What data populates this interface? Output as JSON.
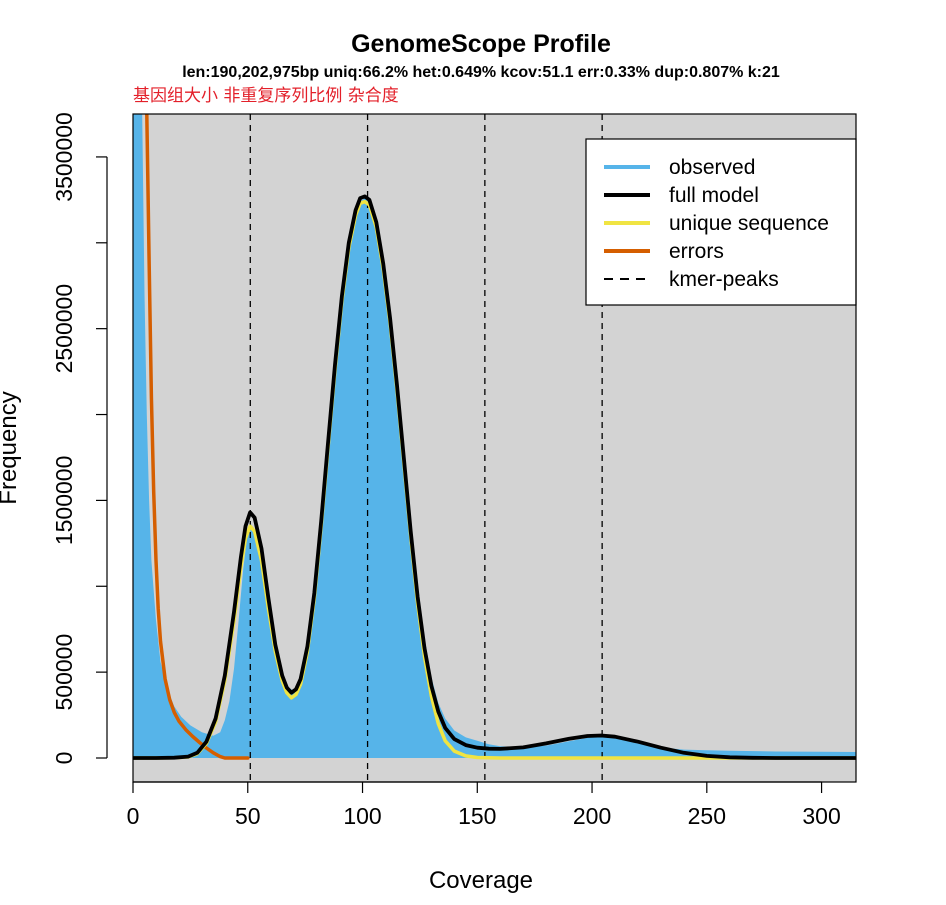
{
  "chart_data": {
    "type": "area",
    "title": "GenomeScope Profile",
    "subtitle": "len:190,202,975bp uniq:66.2%  het:0.649% kcov:51.1 err:0.33%  dup:0.807%  k:21",
    "annotation": "基因组大小 非重复序列比例  杂合度",
    "xlabel": "Coverage",
    "ylabel": "Frequency",
    "xlim": [
      0,
      315
    ],
    "ylim": [
      0,
      3750000
    ],
    "x_ticks": [
      0,
      50,
      100,
      150,
      200,
      250,
      300
    ],
    "y_ticks": [
      0,
      500000,
      1500000,
      2500000,
      3500000
    ],
    "grid": false,
    "background": "#d3d3d3",
    "legend_position": "top-right",
    "kmer_peaks": [
      51.1,
      102.2,
      153.3,
      204.4
    ],
    "series": [
      {
        "name": "observed",
        "style": "filled area",
        "color": "#56b4e9",
        "points": [
          [
            0,
            3750000
          ],
          [
            4,
            3750000
          ],
          [
            5,
            2700000
          ],
          [
            6,
            2000000
          ],
          [
            7,
            1500000
          ],
          [
            8,
            1150000
          ],
          [
            10,
            800000
          ],
          [
            12,
            560000
          ],
          [
            15,
            400000
          ],
          [
            18,
            300000
          ],
          [
            21,
            240000
          ],
          [
            25,
            190000
          ],
          [
            30,
            150000
          ],
          [
            35,
            130000
          ],
          [
            38,
            150000
          ],
          [
            40,
            220000
          ],
          [
            42,
            330000
          ],
          [
            44,
            520000
          ],
          [
            46,
            800000
          ],
          [
            48,
            1100000
          ],
          [
            50,
            1320000
          ],
          [
            51,
            1370000
          ],
          [
            52,
            1350000
          ],
          [
            54,
            1270000
          ],
          [
            57,
            1070000
          ],
          [
            60,
            820000
          ],
          [
            63,
            600000
          ],
          [
            66,
            460000
          ],
          [
            68,
            410000
          ],
          [
            70,
            390000
          ],
          [
            72,
            430000
          ],
          [
            75,
            600000
          ],
          [
            78,
            900000
          ],
          [
            81,
            1300000
          ],
          [
            84,
            1750000
          ],
          [
            87,
            2200000
          ],
          [
            90,
            2600000
          ],
          [
            93,
            2920000
          ],
          [
            96,
            3130000
          ],
          [
            99,
            3240000
          ],
          [
            101,
            3260000
          ],
          [
            103,
            3250000
          ],
          [
            106,
            3130000
          ],
          [
            109,
            2910000
          ],
          [
            112,
            2600000
          ],
          [
            115,
            2230000
          ],
          [
            118,
            1820000
          ],
          [
            121,
            1400000
          ],
          [
            124,
            1020000
          ],
          [
            127,
            700000
          ],
          [
            130,
            470000
          ],
          [
            133,
            320000
          ],
          [
            136,
            230000
          ],
          [
            140,
            160000
          ],
          [
            145,
            120000
          ],
          [
            150,
            100000
          ],
          [
            155,
            80000
          ],
          [
            160,
            68000
          ],
          [
            170,
            64000
          ],
          [
            180,
            72000
          ],
          [
            190,
            98000
          ],
          [
            200,
            122000
          ],
          [
            204,
            126000
          ],
          [
            210,
            116000
          ],
          [
            220,
            85000
          ],
          [
            230,
            62000
          ],
          [
            240,
            49000
          ],
          [
            250,
            45000
          ],
          [
            260,
            42000
          ],
          [
            280,
            38000
          ],
          [
            300,
            36000
          ],
          [
            315,
            35000
          ]
        ]
      },
      {
        "name": "full model",
        "style": "line",
        "color": "#000000",
        "points": [
          [
            0,
            0
          ],
          [
            10,
            0
          ],
          [
            18,
            2000
          ],
          [
            24,
            8000
          ],
          [
            28,
            30000
          ],
          [
            32,
            95000
          ],
          [
            36,
            230000
          ],
          [
            40,
            480000
          ],
          [
            44,
            850000
          ],
          [
            47,
            1170000
          ],
          [
            49,
            1350000
          ],
          [
            51,
            1430000
          ],
          [
            53,
            1400000
          ],
          [
            56,
            1220000
          ],
          [
            59,
            930000
          ],
          [
            62,
            660000
          ],
          [
            65,
            480000
          ],
          [
            67,
            410000
          ],
          [
            69,
            380000
          ],
          [
            71,
            400000
          ],
          [
            73,
            460000
          ],
          [
            76,
            650000
          ],
          [
            79,
            960000
          ],
          [
            82,
            1380000
          ],
          [
            85,
            1840000
          ],
          [
            88,
            2290000
          ],
          [
            91,
            2690000
          ],
          [
            94,
            3000000
          ],
          [
            97,
            3190000
          ],
          [
            99,
            3260000
          ],
          [
            101,
            3270000
          ],
          [
            103,
            3250000
          ],
          [
            106,
            3120000
          ],
          [
            109,
            2880000
          ],
          [
            112,
            2560000
          ],
          [
            115,
            2170000
          ],
          [
            118,
            1750000
          ],
          [
            121,
            1320000
          ],
          [
            124,
            940000
          ],
          [
            127,
            640000
          ],
          [
            130,
            420000
          ],
          [
            133,
            270000
          ],
          [
            136,
            175000
          ],
          [
            140,
            110000
          ],
          [
            145,
            75000
          ],
          [
            150,
            60000
          ],
          [
            155,
            54000
          ],
          [
            160,
            53000
          ],
          [
            170,
            62000
          ],
          [
            180,
            85000
          ],
          [
            190,
            112000
          ],
          [
            198,
            128000
          ],
          [
            204,
            131000
          ],
          [
            210,
            124000
          ],
          [
            220,
            95000
          ],
          [
            230,
            60000
          ],
          [
            240,
            30000
          ],
          [
            250,
            12000
          ],
          [
            260,
            4000
          ],
          [
            270,
            1000
          ],
          [
            280,
            0
          ],
          [
            315,
            0
          ]
        ]
      },
      {
        "name": "unique sequence",
        "style": "line",
        "color": "#f0e442",
        "points": [
          [
            0,
            0
          ],
          [
            10,
            0
          ],
          [
            18,
            1000
          ],
          [
            24,
            6000
          ],
          [
            28,
            25000
          ],
          [
            32,
            85000
          ],
          [
            36,
            210000
          ],
          [
            40,
            450000
          ],
          [
            44,
            800000
          ],
          [
            47,
            1110000
          ],
          [
            49,
            1280000
          ],
          [
            51,
            1350000
          ],
          [
            53,
            1320000
          ],
          [
            56,
            1150000
          ],
          [
            59,
            870000
          ],
          [
            62,
            620000
          ],
          [
            65,
            450000
          ],
          [
            67,
            380000
          ],
          [
            69,
            350000
          ],
          [
            71,
            370000
          ],
          [
            73,
            430000
          ],
          [
            76,
            620000
          ],
          [
            79,
            930000
          ],
          [
            82,
            1350000
          ],
          [
            85,
            1810000
          ],
          [
            88,
            2260000
          ],
          [
            91,
            2660000
          ],
          [
            94,
            2970000
          ],
          [
            97,
            3160000
          ],
          [
            99,
            3230000
          ],
          [
            101,
            3240000
          ],
          [
            103,
            3220000
          ],
          [
            106,
            3090000
          ],
          [
            109,
            2850000
          ],
          [
            112,
            2530000
          ],
          [
            115,
            2140000
          ],
          [
            118,
            1720000
          ],
          [
            121,
            1290000
          ],
          [
            124,
            900000
          ],
          [
            127,
            590000
          ],
          [
            130,
            360000
          ],
          [
            133,
            200000
          ],
          [
            136,
            100000
          ],
          [
            140,
            40000
          ],
          [
            145,
            12000
          ],
          [
            150,
            3000
          ],
          [
            160,
            0
          ],
          [
            315,
            0
          ]
        ]
      },
      {
        "name": "errors",
        "style": "line",
        "color": "#d55e00",
        "points": [
          [
            6,
            3750000
          ],
          [
            7,
            2900000
          ],
          [
            8,
            2100000
          ],
          [
            9,
            1550000
          ],
          [
            10,
            1150000
          ],
          [
            11,
            870000
          ],
          [
            12,
            680000
          ],
          [
            14,
            460000
          ],
          [
            16,
            340000
          ],
          [
            18,
            265000
          ],
          [
            20,
            215000
          ],
          [
            23,
            165000
          ],
          [
            26,
            125000
          ],
          [
            29,
            90000
          ],
          [
            32,
            58000
          ],
          [
            35,
            30000
          ],
          [
            38,
            8000
          ],
          [
            40,
            0
          ],
          [
            50,
            0
          ]
        ]
      },
      {
        "name": "kmer-peaks",
        "style": "dashed vertical lines",
        "color": "#000000"
      }
    ]
  }
}
